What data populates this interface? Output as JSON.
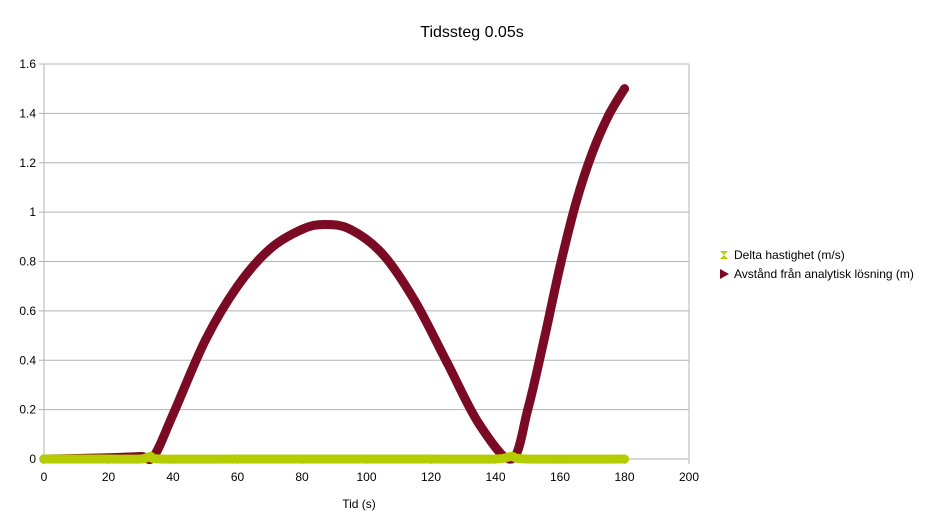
{
  "chart_data": {
    "type": "line",
    "title": "Tidssteg 0.05s",
    "xlabel": "Tid (s)",
    "ylabel": "",
    "xlim": [
      0,
      200
    ],
    "ylim": [
      0,
      1.6
    ],
    "xticks": [
      0,
      20,
      40,
      60,
      80,
      100,
      120,
      140,
      160,
      180,
      200
    ],
    "yticks": [
      0,
      0.2,
      0.4,
      0.6,
      0.8,
      1,
      1.2,
      1.4,
      1.6
    ],
    "grid": "horizontal",
    "legend_position": "right",
    "series": [
      {
        "name": "Delta hastighet (m/s)",
        "color": "#b5cc00",
        "marker": "hourglass",
        "x": [
          0,
          10,
          20,
          30,
          33,
          36,
          60,
          90,
          120,
          140,
          145,
          150,
          180
        ],
        "y": [
          0,
          0,
          0,
          0,
          0.01,
          0,
          0,
          0,
          0,
          0,
          0.01,
          0,
          0
        ]
      },
      {
        "name": "Avstånd från analytisk lösning (m)",
        "color": "#7b0a25",
        "marker": "triangle-right",
        "x": [
          0,
          10,
          20,
          30,
          34,
          40,
          50,
          60,
          70,
          80,
          87,
          95,
          105,
          115,
          125,
          135,
          145,
          150,
          155,
          160,
          165,
          170,
          175,
          180
        ],
        "y": [
          0,
          0.002,
          0.005,
          0.01,
          0.01,
          0.18,
          0.48,
          0.7,
          0.85,
          0.93,
          0.95,
          0.93,
          0.83,
          0.64,
          0.39,
          0.14,
          0.0,
          0.2,
          0.48,
          0.78,
          1.04,
          1.24,
          1.39,
          1.5
        ]
      }
    ]
  }
}
